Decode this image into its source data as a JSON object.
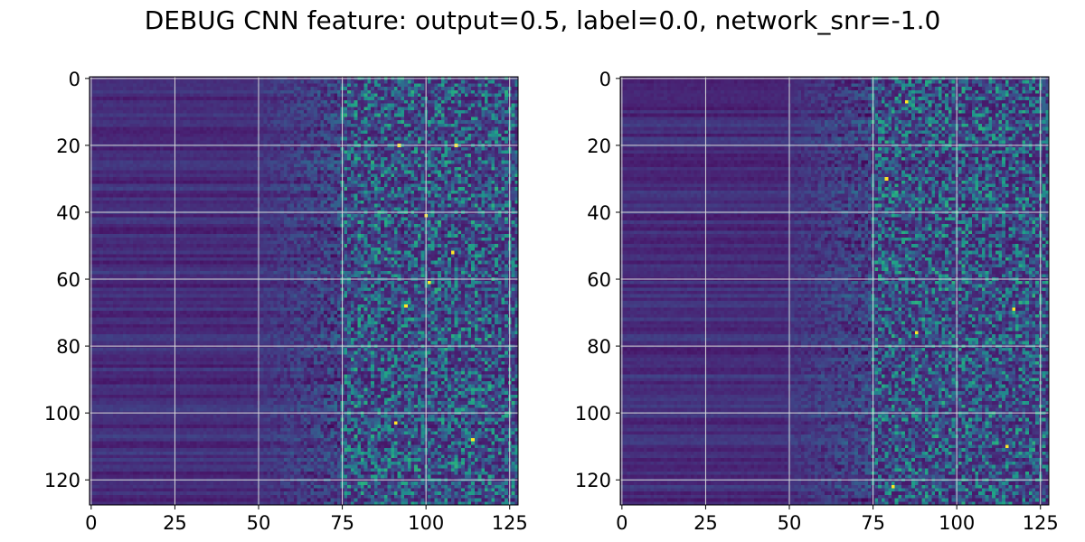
{
  "figure": {
    "title": "DEBUG CNN feature: output=0.5, label=0.0, network_snr=-1.0"
  },
  "chart_data": [
    {
      "type": "heatmap",
      "title": "",
      "xlabel": "",
      "ylabel": "",
      "rows": 128,
      "cols": 128,
      "xlim": [
        -0.5,
        127.5
      ],
      "ylim": [
        127.5,
        -0.5
      ],
      "x_ticks": [
        0,
        25,
        50,
        75,
        100,
        125
      ],
      "y_ticks": [
        0,
        20,
        40,
        60,
        80,
        100,
        120
      ],
      "grid": true,
      "colormap": "viridis",
      "value_range": [
        0,
        1
      ],
      "seed": 11,
      "hotspots": [
        [
          20,
          92
        ],
        [
          20,
          109
        ],
        [
          41,
          100
        ],
        [
          52,
          108
        ],
        [
          61,
          101
        ],
        [
          68,
          94
        ],
        [
          108,
          114
        ],
        [
          103,
          91
        ]
      ]
    },
    {
      "type": "heatmap",
      "title": "",
      "xlabel": "",
      "ylabel": "",
      "rows": 128,
      "cols": 128,
      "xlim": [
        -0.5,
        127.5
      ],
      "ylim": [
        127.5,
        -0.5
      ],
      "x_ticks": [
        0,
        25,
        50,
        75,
        100,
        125
      ],
      "y_ticks": [
        0,
        20,
        40,
        60,
        80,
        100,
        120
      ],
      "grid": true,
      "colormap": "viridis",
      "value_range": [
        0,
        1
      ],
      "seed": 29,
      "hotspots": [
        [
          7,
          85
        ],
        [
          76,
          88
        ],
        [
          69,
          117
        ],
        [
          122,
          81
        ],
        [
          110,
          115
        ],
        [
          30,
          79
        ]
      ]
    }
  ],
  "style": {
    "grid_color": "#d8d8d8",
    "axis_color": "#000000"
  }
}
